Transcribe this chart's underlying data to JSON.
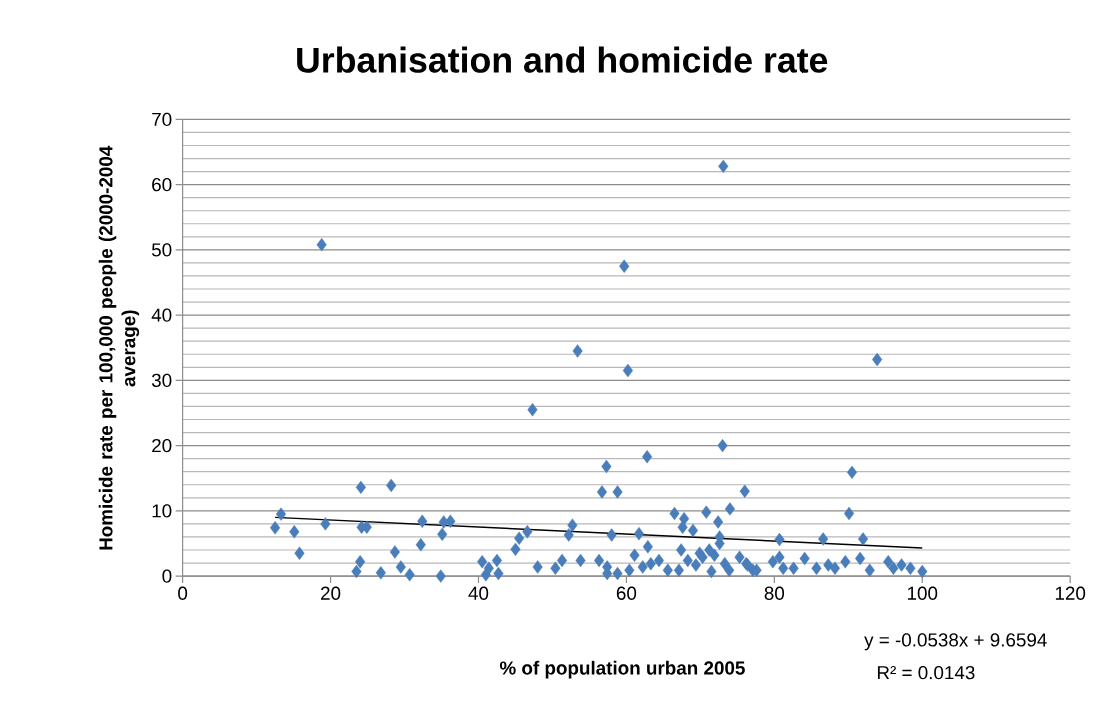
{
  "chart_data": {
    "type": "scatter",
    "title": "Urbanisation and homicide rate",
    "xlabel": "% of population urban 2005",
    "ylabel": "Homicide rate per 100,000 people (2000-2004 average)",
    "xlim": [
      0,
      120
    ],
    "xticks": [
      0,
      20,
      40,
      60,
      80,
      100,
      120
    ],
    "ylim": [
      0,
      70
    ],
    "yticks": [
      0,
      10,
      20,
      30,
      40,
      50,
      60,
      70
    ],
    "grid": "y",
    "annotations": [
      "y = -0.0538x + 9.6594",
      "R² = 0.0143"
    ],
    "series": [
      {
        "marker": "diamond",
        "color": "#4a7ebb",
        "x": [
          12.5,
          13.3,
          15.1,
          15.8,
          18.8,
          19.3,
          23.5,
          24.0,
          24.1,
          24.2,
          24.9,
          26.8,
          28.2,
          28.7,
          29.5,
          30.7,
          32.2,
          32.4,
          34.9,
          35.1,
          35.3,
          36.2,
          40.5,
          41.0,
          41.4,
          42.5,
          42.7,
          45.0,
          45.5,
          46.6,
          47.3,
          48.0,
          50.4,
          51.3,
          52.2,
          52.7,
          53.4,
          53.8,
          56.3,
          56.7,
          57.3,
          57.4,
          57.4,
          58.0,
          58.8,
          58.8,
          59.7,
          60.2,
          60.4,
          61.1,
          61.7,
          62.2,
          62.8,
          62.9,
          63.3,
          64.4,
          65.6,
          66.5,
          67.1,
          67.4,
          67.6,
          67.8,
          68.3,
          69.0,
          69.4,
          69.9,
          70.3,
          70.8,
          71.2,
          71.5,
          71.9,
          72.4,
          72.6,
          72.6,
          73.0,
          73.1,
          73.3,
          73.9,
          74.0,
          75.3,
          76.0,
          76.2,
          76.4,
          77.1,
          77.6,
          79.8,
          80.7,
          80.7,
          81.2,
          82.6,
          84.1,
          85.7,
          86.6,
          87.3,
          88.2,
          89.6,
          90.1,
          90.5,
          91.6,
          92.0,
          92.9,
          93.9,
          95.4,
          96.1,
          97.2,
          98.4,
          100
        ],
        "values": [
          7.4,
          9.5,
          6.8,
          3.5,
          50.8,
          8.0,
          0.7,
          2.2,
          13.6,
          7.5,
          7.5,
          0.5,
          13.9,
          3.7,
          1.4,
          0.2,
          4.8,
          8.4,
          0.0,
          6.4,
          8.3,
          8.4,
          2.2,
          0.2,
          1.2,
          2.4,
          0.4,
          4.1,
          5.8,
          6.8,
          25.5,
          1.4,
          1.2,
          2.4,
          6.3,
          7.8,
          34.5,
          2.4,
          2.4,
          12.9,
          16.8,
          1.4,
          0.4,
          6.3,
          12.9,
          0.4,
          47.5,
          31.5,
          0.9,
          3.2,
          6.5,
          1.4,
          18.3,
          4.5,
          1.9,
          2.4,
          0.9,
          9.6,
          0.9,
          4.0,
          7.5,
          8.8,
          2.4,
          7.0,
          1.7,
          3.5,
          2.9,
          9.8,
          4.0,
          0.7,
          3.2,
          8.3,
          6.0,
          5.0,
          20.0,
          62.8,
          1.9,
          0.9,
          10.3,
          2.9,
          13.0,
          1.9,
          1.7,
          0.9,
          0.9,
          2.2,
          5.6,
          2.9,
          1.2,
          1.2,
          2.7,
          1.2,
          5.7,
          1.7,
          1.2,
          2.2,
          9.6,
          15.9,
          2.7,
          5.7,
          0.9,
          33.2,
          2.2,
          1.2,
          1.7,
          1.2,
          0.7
        ]
      },
      {
        "type": "line",
        "color": "#000000",
        "line_style": "solid",
        "x": [
          12.5,
          100
        ],
        "values": [
          9.0,
          4.3
        ]
      }
    ]
  }
}
